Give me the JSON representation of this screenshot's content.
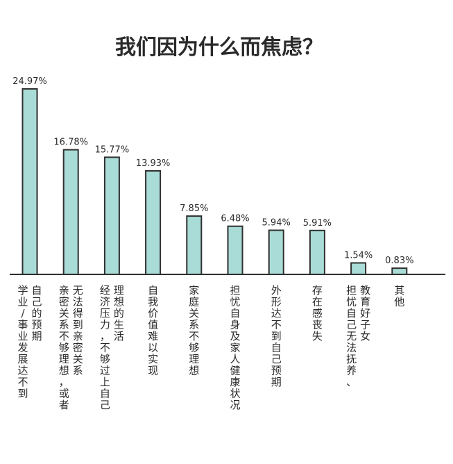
{
  "chart_data": {
    "type": "bar",
    "title": "我们因为什么而焦虑？",
    "xlabel": "",
    "ylabel": "",
    "ylim": [
      0,
      25
    ],
    "grid": false,
    "categories": [
      [
        "学业/事业发展达不到",
        "自己的预期"
      ],
      [
        "亲密关系不够理想，或者",
        "无法得到亲密关系"
      ],
      [
        "经济压力，不够过上自己",
        "理想的生活"
      ],
      [
        "自我价值难以实现"
      ],
      [
        "家庭关系不够理想"
      ],
      [
        "担忧自身及家人健康状况"
      ],
      [
        "外形达不到自己预期"
      ],
      [
        "存在感丧失"
      ],
      [
        "担忧自己无法抚养、",
        "教育好子女"
      ],
      [
        "其他"
      ]
    ],
    "values": [
      24.97,
      16.78,
      15.77,
      13.93,
      7.85,
      6.48,
      5.94,
      5.91,
      1.54,
      0.83
    ],
    "value_labels": [
      "24.97%",
      "16.78%",
      "15.77%",
      "13.93%",
      "7.85%",
      "6.48%",
      "5.94%",
      "5.91%",
      "1.54%",
      "0.83%"
    ],
    "colors": {
      "bar_fill": "#a9dcd6",
      "bar_stroke": "#2f2f2f",
      "axis": "#2f2f2f",
      "text": "#2a2a2a"
    }
  }
}
